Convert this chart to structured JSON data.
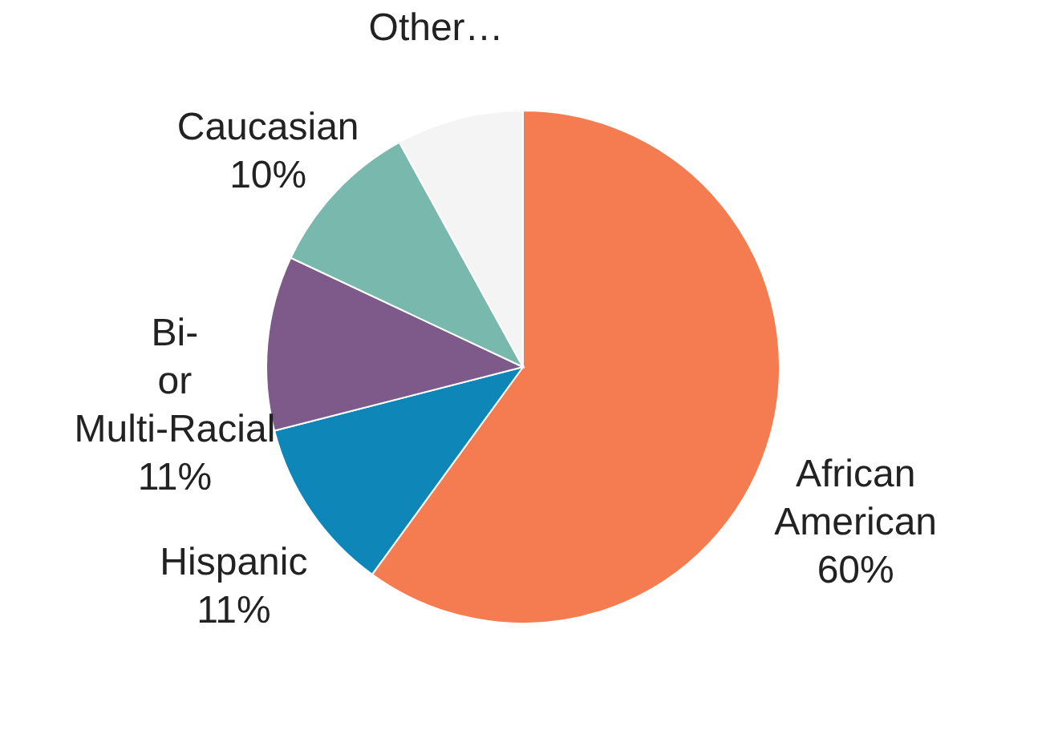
{
  "chart_data": {
    "type": "pie",
    "categories": [
      "African American",
      "Hispanic",
      "Bi- or Multi-Racial",
      "Caucasian",
      "Other…"
    ],
    "values": [
      60,
      11,
      11,
      10,
      8
    ],
    "colors": [
      "#f47c50",
      "#0e86b8",
      "#7e5a8a",
      "#79b9ad",
      "#f4f4f4"
    ],
    "value_labels": [
      "60%",
      "11%",
      "11%",
      "10%",
      null
    ]
  }
}
